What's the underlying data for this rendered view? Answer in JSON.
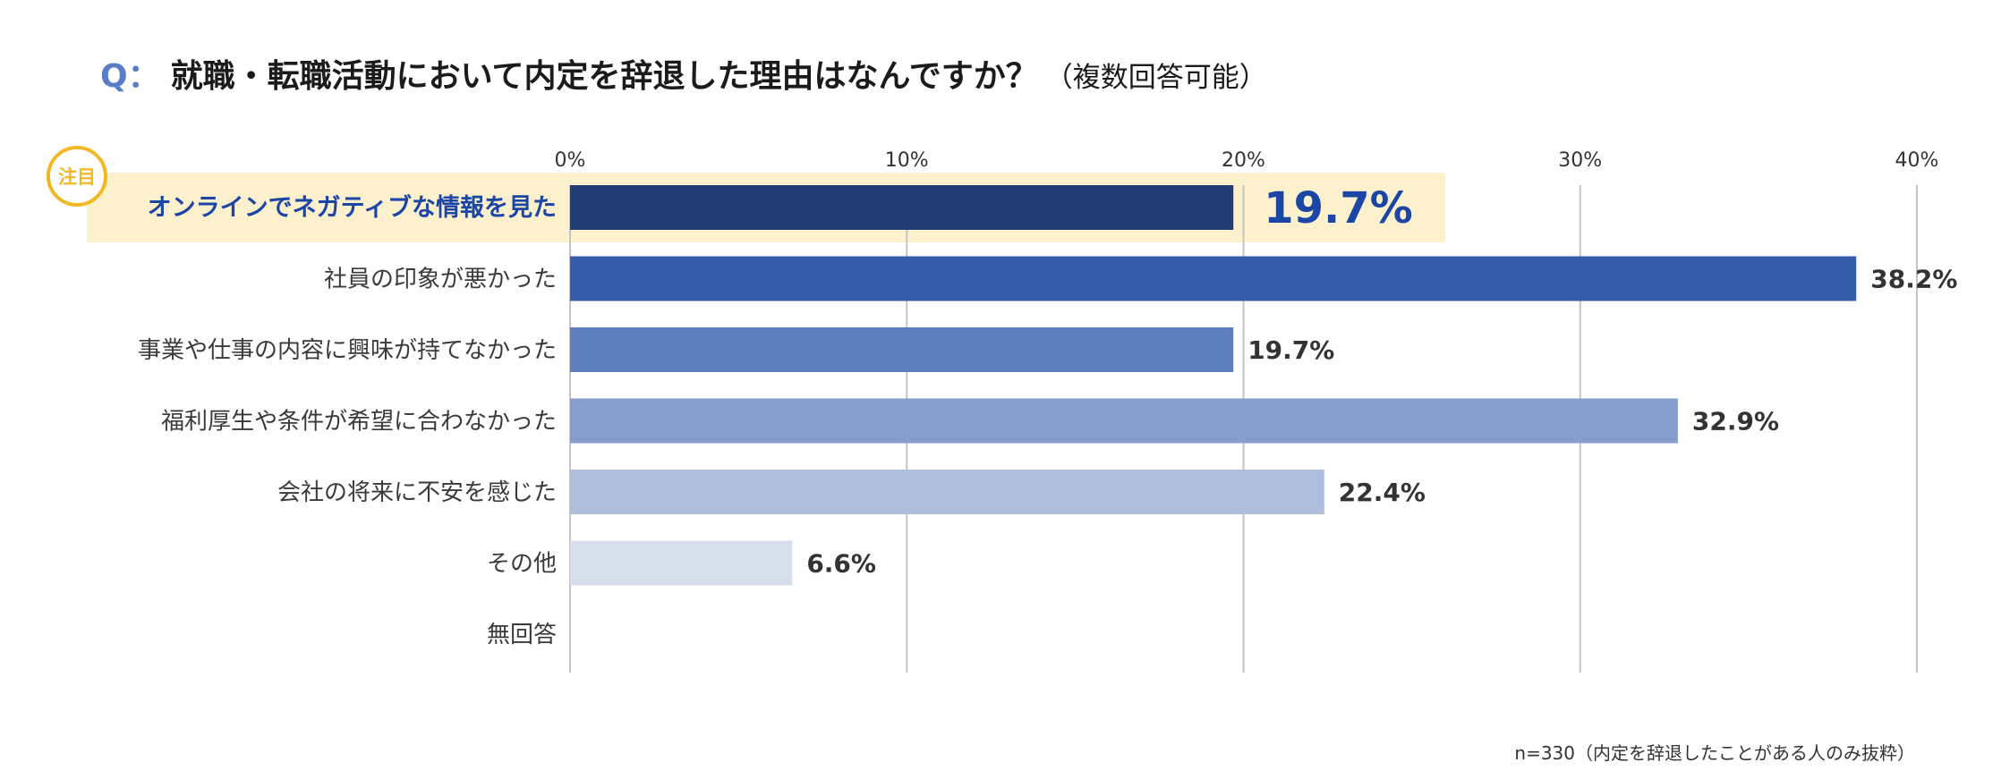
{
  "title": {
    "prefix": "Q：",
    "main": "就職・転職活動において内定を辞退した理由はなんですか？",
    "note": "（複数回答可能）"
  },
  "badge": "注目",
  "footnote": "n=330（内定を辞退したことがある人のみ抜粋）",
  "colors": {
    "highlight_bg": "#fdf0cc",
    "highlight_text": "#1c46a6",
    "badge": "#f2b824",
    "grid": "#c4c4c4"
  },
  "chart_data": {
    "type": "bar",
    "orientation": "horizontal",
    "xlim": [
      0,
      40
    ],
    "ticks": [
      0,
      10,
      20,
      30,
      40
    ],
    "tick_labels": [
      "0%",
      "10%",
      "20%",
      "30%",
      "40%"
    ],
    "categories": [
      "オンラインでネガティブな情報を見た",
      "社員の印象が悪かった",
      "事業や仕事の内容に興味が持てなかった",
      "福利厚生や条件が希望に合わなかった",
      "会社の将来に不安を感じた",
      "その他",
      "無回答"
    ],
    "values": [
      19.7,
      38.2,
      19.7,
      32.9,
      22.4,
      6.6,
      0
    ],
    "value_labels": [
      "19.7%",
      "38.2%",
      "19.7%",
      "32.9%",
      "22.4%",
      "6.6%",
      ""
    ],
    "bar_colors": [
      "#223d73",
      "#345cab",
      "#5e7fbd",
      "#879dcb",
      "#afbedd",
      "#d5deeb",
      "#e9eef5"
    ],
    "highlight_index": 0,
    "grid": true
  }
}
